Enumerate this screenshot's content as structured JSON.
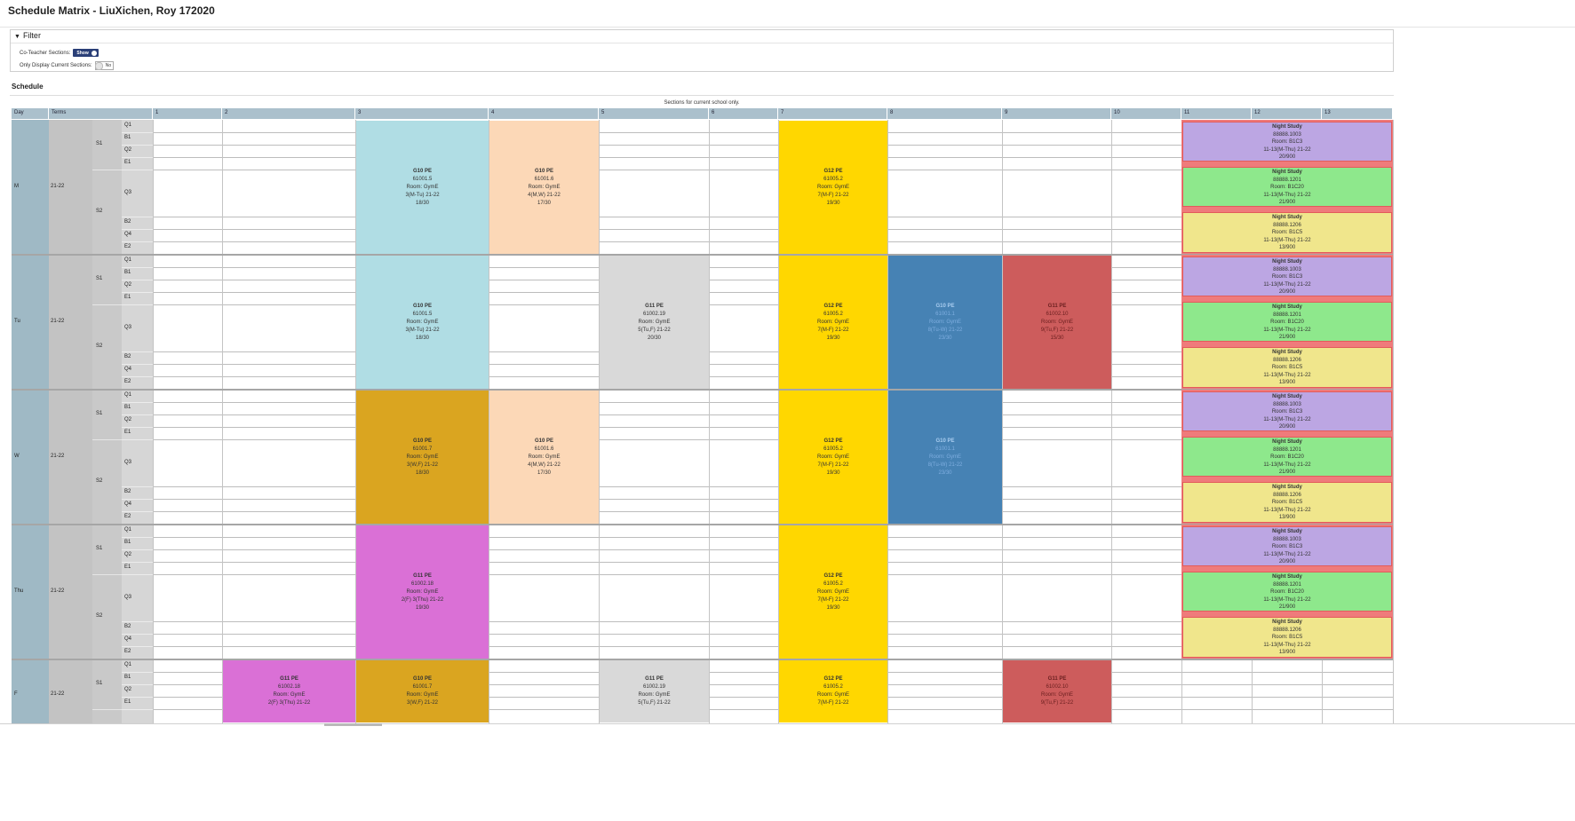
{
  "page": {
    "title": "Schedule Matrix - LiuXichen, Roy   172020"
  },
  "filter": {
    "label": "Filter",
    "co_teacher_label": "Co-Teacher Sections:",
    "co_teacher_value": "Show",
    "only_current_label": "Only Display Current Sections:",
    "only_current_value": "No"
  },
  "schedule": {
    "label": "Schedule",
    "note": "Sections for current school only.",
    "headers": {
      "day": "Day",
      "terms": "Terms",
      "periods": [
        "1",
        "2",
        "3",
        "4",
        "5",
        "6",
        "7",
        "8",
        "9",
        "10",
        "11",
        "12",
        "13"
      ]
    },
    "term_year": "21-22",
    "semester_labels": [
      "S1",
      "S2"
    ],
    "row_labels": [
      "Q1",
      "B1",
      "Q2",
      "E1",
      "Q3",
      "B2",
      "Q4",
      "E2"
    ],
    "days": [
      {
        "label": "M",
        "term": "21-22",
        "blocks": [
          {
            "period": "3",
            "color": "#b0dde4",
            "lines": [
              "G10 PE",
              "61001.5",
              "Room: GymE",
              "3(M-Tu) 21-22",
              "18/30"
            ]
          },
          {
            "period": "4",
            "color": "#fcd8b7",
            "lines": [
              "G10 PE",
              "61001.6",
              "Room: GymE",
              "4(M,W) 21-22",
              "17/30"
            ]
          },
          {
            "period": "7",
            "color": "#ffd700",
            "lines": [
              "G12 PE",
              "61005.2",
              "Room: GymE",
              "7(M-F) 21-22",
              "19/30"
            ]
          }
        ],
        "night": [
          {
            "color": "#bca6e3",
            "lines": [
              "Night Study",
              "88888.1003",
              "Room: B1C3",
              "11-13(M-Thu) 21-22",
              "20/900"
            ]
          },
          {
            "color": "#8ee88c",
            "lines": [
              "Night Study",
              "88888.1201",
              "Room: B1C20",
              "11-13(M-Thu) 21-22",
              "21/900"
            ]
          },
          {
            "color": "#f0e68c",
            "lines": [
              "Night Study",
              "88888.1206",
              "Room: B1C5",
              "11-13(M-Thu) 21-22",
              "13/900"
            ]
          }
        ]
      },
      {
        "label": "Tu",
        "term": "21-22",
        "blocks": [
          {
            "period": "3",
            "color": "#b0dde4",
            "lines": [
              "G10 PE",
              "61001.5",
              "Room: GymE",
              "3(M-Tu) 21-22",
              "18/30"
            ]
          },
          {
            "period": "5",
            "color": "#d9d9d9",
            "lines": [
              "G11 PE",
              "61002.19",
              "Room: GymE",
              "5(Tu,F) 21-22",
              "20/30"
            ]
          },
          {
            "period": "7",
            "color": "#ffd700",
            "lines": [
              "G12 PE",
              "61005.2",
              "Room: GymE",
              "7(M-F) 21-22",
              "19/30"
            ]
          },
          {
            "period": "8",
            "color": "#4682b4",
            "lines": [
              "G10 PE",
              "61001.1",
              "Room: GymE",
              "8(Tu-W) 21-22",
              "23/30"
            ]
          },
          {
            "period": "9",
            "color": "#cd5c5c",
            "lines": [
              "G11 PE",
              "61002.10",
              "Room: GymE",
              "9(Tu,F) 21-22",
              "15/30"
            ]
          }
        ],
        "night": [
          {
            "color": "#bca6e3",
            "lines": [
              "Night Study",
              "88888.1003",
              "Room: B1C3",
              "11-13(M-Thu) 21-22",
              "20/900"
            ]
          },
          {
            "color": "#8ee88c",
            "lines": [
              "Night Study",
              "88888.1201",
              "Room: B1C20",
              "11-13(M-Thu) 21-22",
              "21/900"
            ]
          },
          {
            "color": "#f0e68c",
            "lines": [
              "Night Study",
              "88888.1206",
              "Room: B1C5",
              "11-13(M-Thu) 21-22",
              "13/900"
            ]
          }
        ]
      },
      {
        "label": "W",
        "term": "21-22",
        "blocks": [
          {
            "period": "3",
            "color": "#daa520",
            "lines": [
              "G10 PE",
              "61001.7",
              "Room: GymE",
              "3(W,F) 21-22",
              "18/30"
            ]
          },
          {
            "period": "4",
            "color": "#fcd8b7",
            "lines": [
              "G10 PE",
              "61001.6",
              "Room: GymE",
              "4(M,W) 21-22",
              "17/30"
            ]
          },
          {
            "period": "7",
            "color": "#ffd700",
            "lines": [
              "G12 PE",
              "61005.2",
              "Room: GymE",
              "7(M-F) 21-22",
              "19/30"
            ]
          },
          {
            "period": "8",
            "color": "#4682b4",
            "lines": [
              "G10 PE",
              "61001.1",
              "Room: GymE",
              "8(Tu-W) 21-22",
              "23/30"
            ]
          }
        ],
        "night": [
          {
            "color": "#bca6e3",
            "lines": [
              "Night Study",
              "88888.1003",
              "Room: B1C3",
              "11-13(M-Thu) 21-22",
              "20/900"
            ]
          },
          {
            "color": "#8ee88c",
            "lines": [
              "Night Study",
              "88888.1201",
              "Room: B1C20",
              "11-13(M-Thu) 21-22",
              "21/900"
            ]
          },
          {
            "color": "#f0e68c",
            "lines": [
              "Night Study",
              "88888.1206",
              "Room: B1C5",
              "11-13(M-Thu) 21-22",
              "13/900"
            ]
          }
        ]
      },
      {
        "label": "Thu",
        "term": "21-22",
        "blocks": [
          {
            "period": "3",
            "color": "#da70d6",
            "lines": [
              "G11 PE",
              "61002.18",
              "Room: GymE",
              "2(F) 3(Thu) 21-22",
              "19/30"
            ]
          },
          {
            "period": "7",
            "color": "#ffd700",
            "lines": [
              "G12 PE",
              "61005.2",
              "Room: GymE",
              "7(M-F) 21-22",
              "19/30"
            ]
          }
        ],
        "night": [
          {
            "color": "#bca6e3",
            "lines": [
              "Night Study",
              "88888.1003",
              "Room: B1C3",
              "11-13(M-Thu) 21-22",
              "20/900"
            ]
          },
          {
            "color": "#8ee88c",
            "lines": [
              "Night Study",
              "88888.1201",
              "Room: B1C20",
              "11-13(M-Thu) 21-22",
              "21/900"
            ]
          },
          {
            "color": "#f0e68c",
            "lines": [
              "Night Study",
              "88888.1206",
              "Room: B1C5",
              "11-13(M-Thu) 21-22",
              "13/900"
            ]
          }
        ]
      },
      {
        "label": "F",
        "term": "21-22",
        "blocks": [
          {
            "period": "2",
            "color": "#da70d6",
            "lines": [
              "G11 PE",
              "61002.18",
              "Room: GymE",
              "2(F) 3(Thu) 21-22"
            ]
          },
          {
            "period": "3",
            "color": "#daa520",
            "lines": [
              "G10 PE",
              "61001.7",
              "Room: GymE",
              "3(W,F) 21-22"
            ]
          },
          {
            "period": "5",
            "color": "#d9d9d9",
            "lines": [
              "G11 PE",
              "61002.19",
              "Room: GymE",
              "5(Tu,F) 21-22"
            ]
          },
          {
            "period": "7",
            "color": "#ffd700",
            "lines": [
              "G12 PE",
              "61005.2",
              "Room: GymE",
              "7(M-F) 21-22"
            ]
          },
          {
            "period": "9",
            "color": "#cd5c5c",
            "lines": [
              "G11 PE",
              "61002.10",
              "Room: GymE",
              "9(Tu,F) 21-22"
            ]
          }
        ],
        "night": []
      }
    ]
  }
}
